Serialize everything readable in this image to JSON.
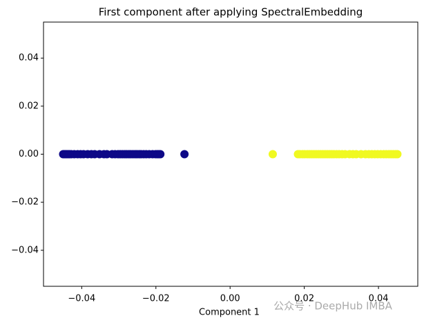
{
  "chart_data": {
    "type": "scatter",
    "title": "First component after applying SpectralEmbedding",
    "xlabel": "Component 1",
    "annotation": "公众号 · DeepHub IMBA",
    "xlim": [
      -0.0503,
      0.0506
    ],
    "ylim": [
      -0.055,
      0.055
    ],
    "xticks": [
      {
        "value": -0.04,
        "label": "−0.04"
      },
      {
        "value": -0.02,
        "label": "−0.02"
      },
      {
        "value": 0,
        "label": "0.00"
      },
      {
        "value": 0.02,
        "label": "0.02"
      },
      {
        "value": 0.04,
        "label": "0.04"
      }
    ],
    "yticks": [
      {
        "value": -0.04,
        "label": "−0.04"
      },
      {
        "value": -0.02,
        "label": "−0.02"
      },
      {
        "value": 0,
        "label": "0.00"
      },
      {
        "value": 0.02,
        "label": "0.02"
      },
      {
        "value": 0.04,
        "label": "0.04"
      }
    ],
    "series": [
      {
        "color": "#0d0887",
        "x": [
          -0.045,
          -0.0447,
          -0.0444,
          -0.0441,
          -0.0437,
          -0.0433,
          -0.0428,
          -0.042,
          -0.0411,
          -0.0403,
          -0.0395,
          -0.0384,
          -0.0374,
          -0.0365,
          -0.0352,
          -0.034,
          -0.0332,
          -0.0318,
          -0.031,
          -0.0302,
          -0.0296,
          -0.029,
          -0.0284,
          -0.0279,
          -0.0273,
          -0.0268,
          -0.0262,
          -0.0256,
          -0.0251,
          -0.0245,
          -0.024,
          -0.0233,
          -0.0226,
          -0.0218,
          -0.0209,
          -0.0201,
          -0.0196,
          -0.0192,
          -0.0188,
          -0.0123
        ],
        "values": [
          0,
          0,
          0,
          0,
          0,
          0,
          0,
          0,
          0,
          0,
          0,
          0,
          0,
          0,
          0,
          0,
          0,
          0,
          0,
          0,
          0,
          0,
          0,
          0,
          0,
          0,
          0,
          0,
          0,
          0,
          0,
          0,
          0,
          0,
          0,
          0,
          0,
          0,
          0,
          0
        ]
      },
      {
        "color": "#f0f921",
        "x": [
          0.0115,
          0.0183,
          0.0188,
          0.0195,
          0.0201,
          0.0208,
          0.0214,
          0.022,
          0.0226,
          0.0232,
          0.0238,
          0.0244,
          0.025,
          0.0256,
          0.0262,
          0.0268,
          0.0274,
          0.028,
          0.0287,
          0.0294,
          0.0302,
          0.031,
          0.0322,
          0.0331,
          0.034,
          0.0353,
          0.0365,
          0.0374,
          0.0382,
          0.039,
          0.0398,
          0.0406,
          0.0414,
          0.0421,
          0.0428,
          0.0434,
          0.044,
          0.0446,
          0.0451
        ],
        "values": [
          0,
          0,
          0,
          0,
          0,
          0,
          0,
          0,
          0,
          0,
          0,
          0,
          0,
          0,
          0,
          0,
          0,
          0,
          0,
          0,
          0,
          0,
          0,
          0,
          0,
          0,
          0,
          0,
          0,
          0,
          0,
          0,
          0,
          0,
          0,
          0,
          0,
          0,
          0
        ]
      }
    ]
  }
}
